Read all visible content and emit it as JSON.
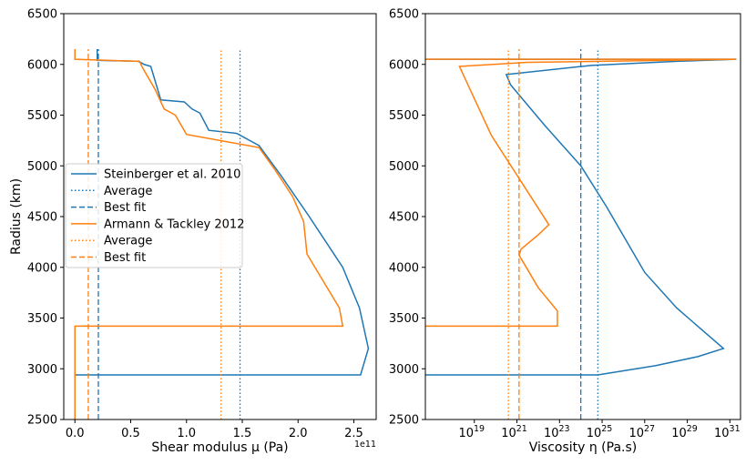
{
  "chart_data": [
    {
      "type": "line",
      "xlabel": "Shear modulus μ (Pa)",
      "ylabel": "Radius (km)",
      "x_offset_label": "1e11",
      "xlim": [
        -10000000000.0,
        270000000000.0
      ],
      "ylim": [
        2500,
        6500
      ],
      "xticks": [
        0,
        50000000000.0,
        100000000000.0,
        150000000000.0,
        200000000000.0,
        250000000000.0
      ],
      "xtick_labels": [
        "0.0",
        "0.5",
        "1.0",
        "1.5",
        "2.0",
        "2.5"
      ],
      "yticks": [
        2500,
        3000,
        3500,
        4000,
        4500,
        5000,
        5500,
        6000,
        6500
      ],
      "ytick_labels": [
        "2500",
        "3000",
        "3500",
        "4000",
        "4500",
        "5000",
        "5500",
        "6000",
        "6500"
      ],
      "legend_position": "center-left",
      "series": [
        {
          "name": "Steinberger et al. 2010",
          "color": "#1f77b4",
          "style": "solid",
          "points": [
            [
              0,
              2940
            ],
            [
              256000000000.0,
              2940
            ],
            [
              263000000000.0,
              3200
            ],
            [
              255000000000.0,
              3600
            ],
            [
              240000000000.0,
              4000
            ],
            [
              210000000000.0,
              4500
            ],
            [
              185000000000.0,
              4900
            ],
            [
              165000000000.0,
              5200
            ],
            [
              145000000000.0,
              5320
            ],
            [
              120000000000.0,
              5350
            ],
            [
              112000000000.0,
              5520
            ],
            [
              105000000000.0,
              5560
            ],
            [
              98000000000.0,
              5630
            ],
            [
              77000000000.0,
              5650
            ],
            [
              68000000000.0,
              5980
            ],
            [
              62000000000.0,
              6000
            ],
            [
              57000000000.0,
              6030
            ],
            [
              20000000000.0,
              6040
            ],
            [
              20000000000.0,
              6150
            ]
          ]
        },
        {
          "name": "Average",
          "color": "#1f77b4",
          "style": "dotted",
          "points": [
            [
              148000000000.0,
              2500
            ],
            [
              148000000000.0,
              6150
            ]
          ]
        },
        {
          "name": "Best fit",
          "color": "#1f77b4",
          "style": "dashed",
          "points": [
            [
              21000000000.0,
              2500
            ],
            [
              21000000000.0,
              6150
            ]
          ]
        },
        {
          "name": "Armann & Tackley 2012",
          "color": "#ff7f0e",
          "style": "solid",
          "points": [
            [
              0,
              2500
            ],
            [
              0,
              3420
            ],
            [
              240000000000.0,
              3420
            ],
            [
              237000000000.0,
              3600
            ],
            [
              208000000000.0,
              4130
            ],
            [
              205000000000.0,
              4450
            ],
            [
              195000000000.0,
              4700
            ],
            [
              180000000000.0,
              4950
            ],
            [
              165000000000.0,
              5180
            ],
            [
              100000000000.0,
              5310
            ],
            [
              90000000000.0,
              5500
            ],
            [
              80000000000.0,
              5560
            ],
            [
              72000000000.0,
              5750
            ],
            [
              60000000000.0,
              5980
            ],
            [
              58000000000.0,
              6030
            ],
            [
              0,
              6050
            ],
            [
              0,
              6150
            ]
          ]
        },
        {
          "name": "Average",
          "color": "#ff7f0e",
          "style": "dotted",
          "points": [
            [
              131000000000.0,
              2500
            ],
            [
              131000000000.0,
              6150
            ]
          ]
        },
        {
          "name": "Best fit",
          "color": "#ff7f0e",
          "style": "dashed",
          "points": [
            [
              12000000000.0,
              2500
            ],
            [
              12000000000.0,
              6150
            ]
          ]
        }
      ]
    },
    {
      "type": "line",
      "xlabel": "Viscosity η (Pa.s)",
      "ylabel": "",
      "xscale": "log",
      "xlim_log10": [
        16.7,
        31.5
      ],
      "ylim": [
        2500,
        6500
      ],
      "xticks_log10": [
        19,
        21,
        23,
        25,
        27,
        29,
        31
      ],
      "xtick_labels": [
        "10^19",
        "10^21",
        "10^23",
        "10^25",
        "10^27",
        "10^29",
        "10^31"
      ],
      "yticks": [
        2500,
        3000,
        3500,
        4000,
        4500,
        5000,
        5500,
        6000,
        6500
      ],
      "ytick_labels": [
        "2500",
        "3000",
        "3500",
        "4000",
        "4500",
        "5000",
        "5500",
        "6000",
        "6500"
      ],
      "series": [
        {
          "name": "Steinberger et al. 2010",
          "color": "#1f77b4",
          "style": "solid",
          "log10x": true,
          "points": [
            [
              16.7,
              2940
            ],
            [
              24.8,
              2940
            ],
            [
              27.5,
              3030
            ],
            [
              29.5,
              3120
            ],
            [
              30.7,
              3200
            ],
            [
              28.5,
              3600
            ],
            [
              27.0,
              3950
            ],
            [
              25.2,
              4600
            ],
            [
              24.0,
              5000
            ],
            [
              22.3,
              5400
            ],
            [
              20.7,
              5800
            ],
            [
              20.5,
              5900
            ],
            [
              24.5,
              5990
            ],
            [
              28.5,
              6030
            ],
            [
              31.3,
              6050
            ],
            [
              16.7,
              6050
            ]
          ]
        },
        {
          "name": "Average",
          "color": "#1f77b4",
          "style": "dotted",
          "points": [
            [
              24.8,
              2500
            ],
            [
              24.8,
              6150
            ]
          ]
        },
        {
          "name": "Best fit",
          "color": "#1f77b4",
          "style": "dashed",
          "points": [
            [
              24.0,
              2500
            ],
            [
              24.0,
              6150
            ]
          ]
        },
        {
          "name": "Armann & Tackley 2012",
          "color": "#ff7f0e",
          "style": "solid",
          "log10x": true,
          "points": [
            [
              16.7,
              3420
            ],
            [
              22.9,
              3420
            ],
            [
              22.9,
              3570
            ],
            [
              22.0,
              3800
            ],
            [
              21.1,
              4120
            ],
            [
              21.2,
              4180
            ],
            [
              22.0,
              4320
            ],
            [
              22.5,
              4420
            ],
            [
              19.8,
              5300
            ],
            [
              18.3,
              5980
            ],
            [
              21.5,
              6020
            ],
            [
              31.3,
              6050
            ],
            [
              16.7,
              6050
            ]
          ]
        },
        {
          "name": "Average",
          "color": "#ff7f0e",
          "style": "dotted",
          "points": [
            [
              20.6,
              2500
            ],
            [
              20.6,
              6150
            ]
          ]
        },
        {
          "name": "Best fit",
          "color": "#ff7f0e",
          "style": "dashed",
          "points": [
            [
              21.1,
              2500
            ],
            [
              21.1,
              6150
            ]
          ]
        }
      ]
    }
  ]
}
